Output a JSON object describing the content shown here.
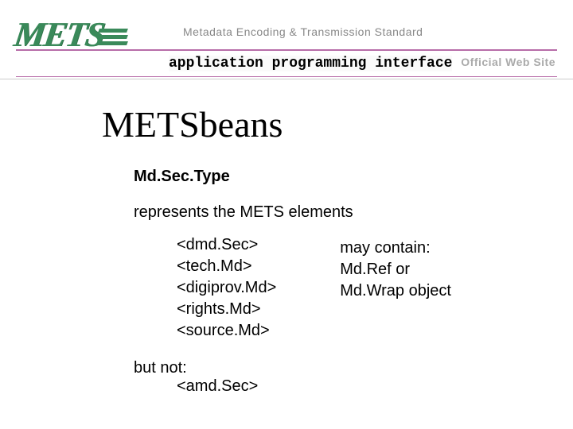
{
  "header": {
    "logo_text": "METS",
    "tagline": "Metadata Encoding & Transmission Standard",
    "subtitle": "application programming interface",
    "official": "Official Web Site",
    "rule_color": "#b76ca8",
    "logo_color": "#3a8a5a"
  },
  "page": {
    "title": "METSbeans",
    "subhead": "Md.Sec.Type",
    "intro": "represents the METS elements",
    "elements": [
      "<dmd.Sec>",
      "<tech.Md>",
      "<digiprov.Md>",
      "<rights.Md>",
      "<source.Md>"
    ],
    "may_contain": [
      "may contain:",
      "Md.Ref or",
      "Md.Wrap object"
    ],
    "but_not_label": "but not:",
    "but_not_item": "<amd.Sec>"
  },
  "typography": {
    "title_fontsize": 46,
    "body_fontsize": 20,
    "subhead_fontsize": 20
  },
  "colors": {
    "background": "#ffffff",
    "text": "#000000",
    "tagline_text": "#888888",
    "official_text": "#aaaaaa"
  }
}
